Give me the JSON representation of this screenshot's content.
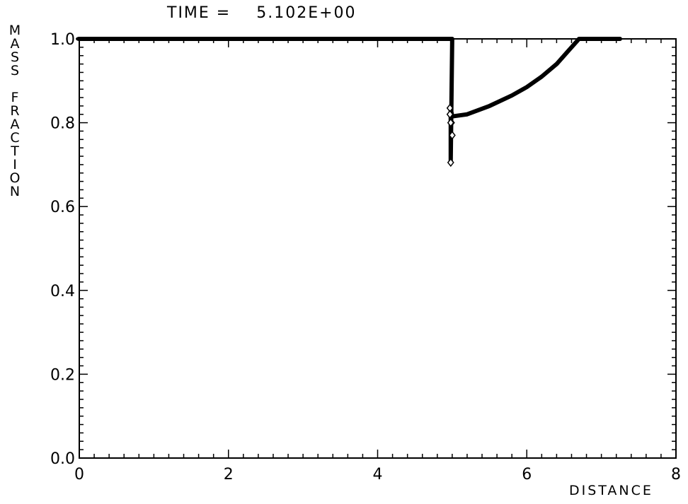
{
  "chart_data": {
    "type": "line",
    "title_prefix": "TIME =",
    "title_value": "5.102E+00",
    "xlabel": "DISTANCE",
    "ylabel": "MASS FRACTION",
    "xlim": [
      0,
      8
    ],
    "ylim": [
      0.0,
      1.0
    ],
    "x_ticks": [
      "0",
      "2",
      "4",
      "6",
      "8"
    ],
    "y_ticks": [
      "0.0",
      "0.2",
      "0.4",
      "0.6",
      "0.8",
      "1.0"
    ],
    "grid": false,
    "series": [
      {
        "values_description": "mass fraction profile",
        "x": [
          0.0,
          2.85,
          3.5,
          4.5,
          5.0,
          4.98,
          4.98,
          5.0,
          5.2,
          5.5,
          5.8,
          6.0,
          6.2,
          6.4,
          6.55,
          6.7,
          7.0,
          7.25
        ],
        "y": [
          1.0,
          1.0,
          1.0,
          1.0,
          1.0,
          0.705,
          0.835,
          0.815,
          0.82,
          0.84,
          0.865,
          0.885,
          0.91,
          0.94,
          0.97,
          1.0,
          1.0,
          1.0
        ]
      }
    ],
    "markers": {
      "x": [
        4.97,
        4.97,
        4.99,
        5.0,
        4.98,
        4.98
      ],
      "y": [
        0.835,
        0.82,
        0.8,
        0.77,
        0.705,
        0.8
      ]
    }
  }
}
